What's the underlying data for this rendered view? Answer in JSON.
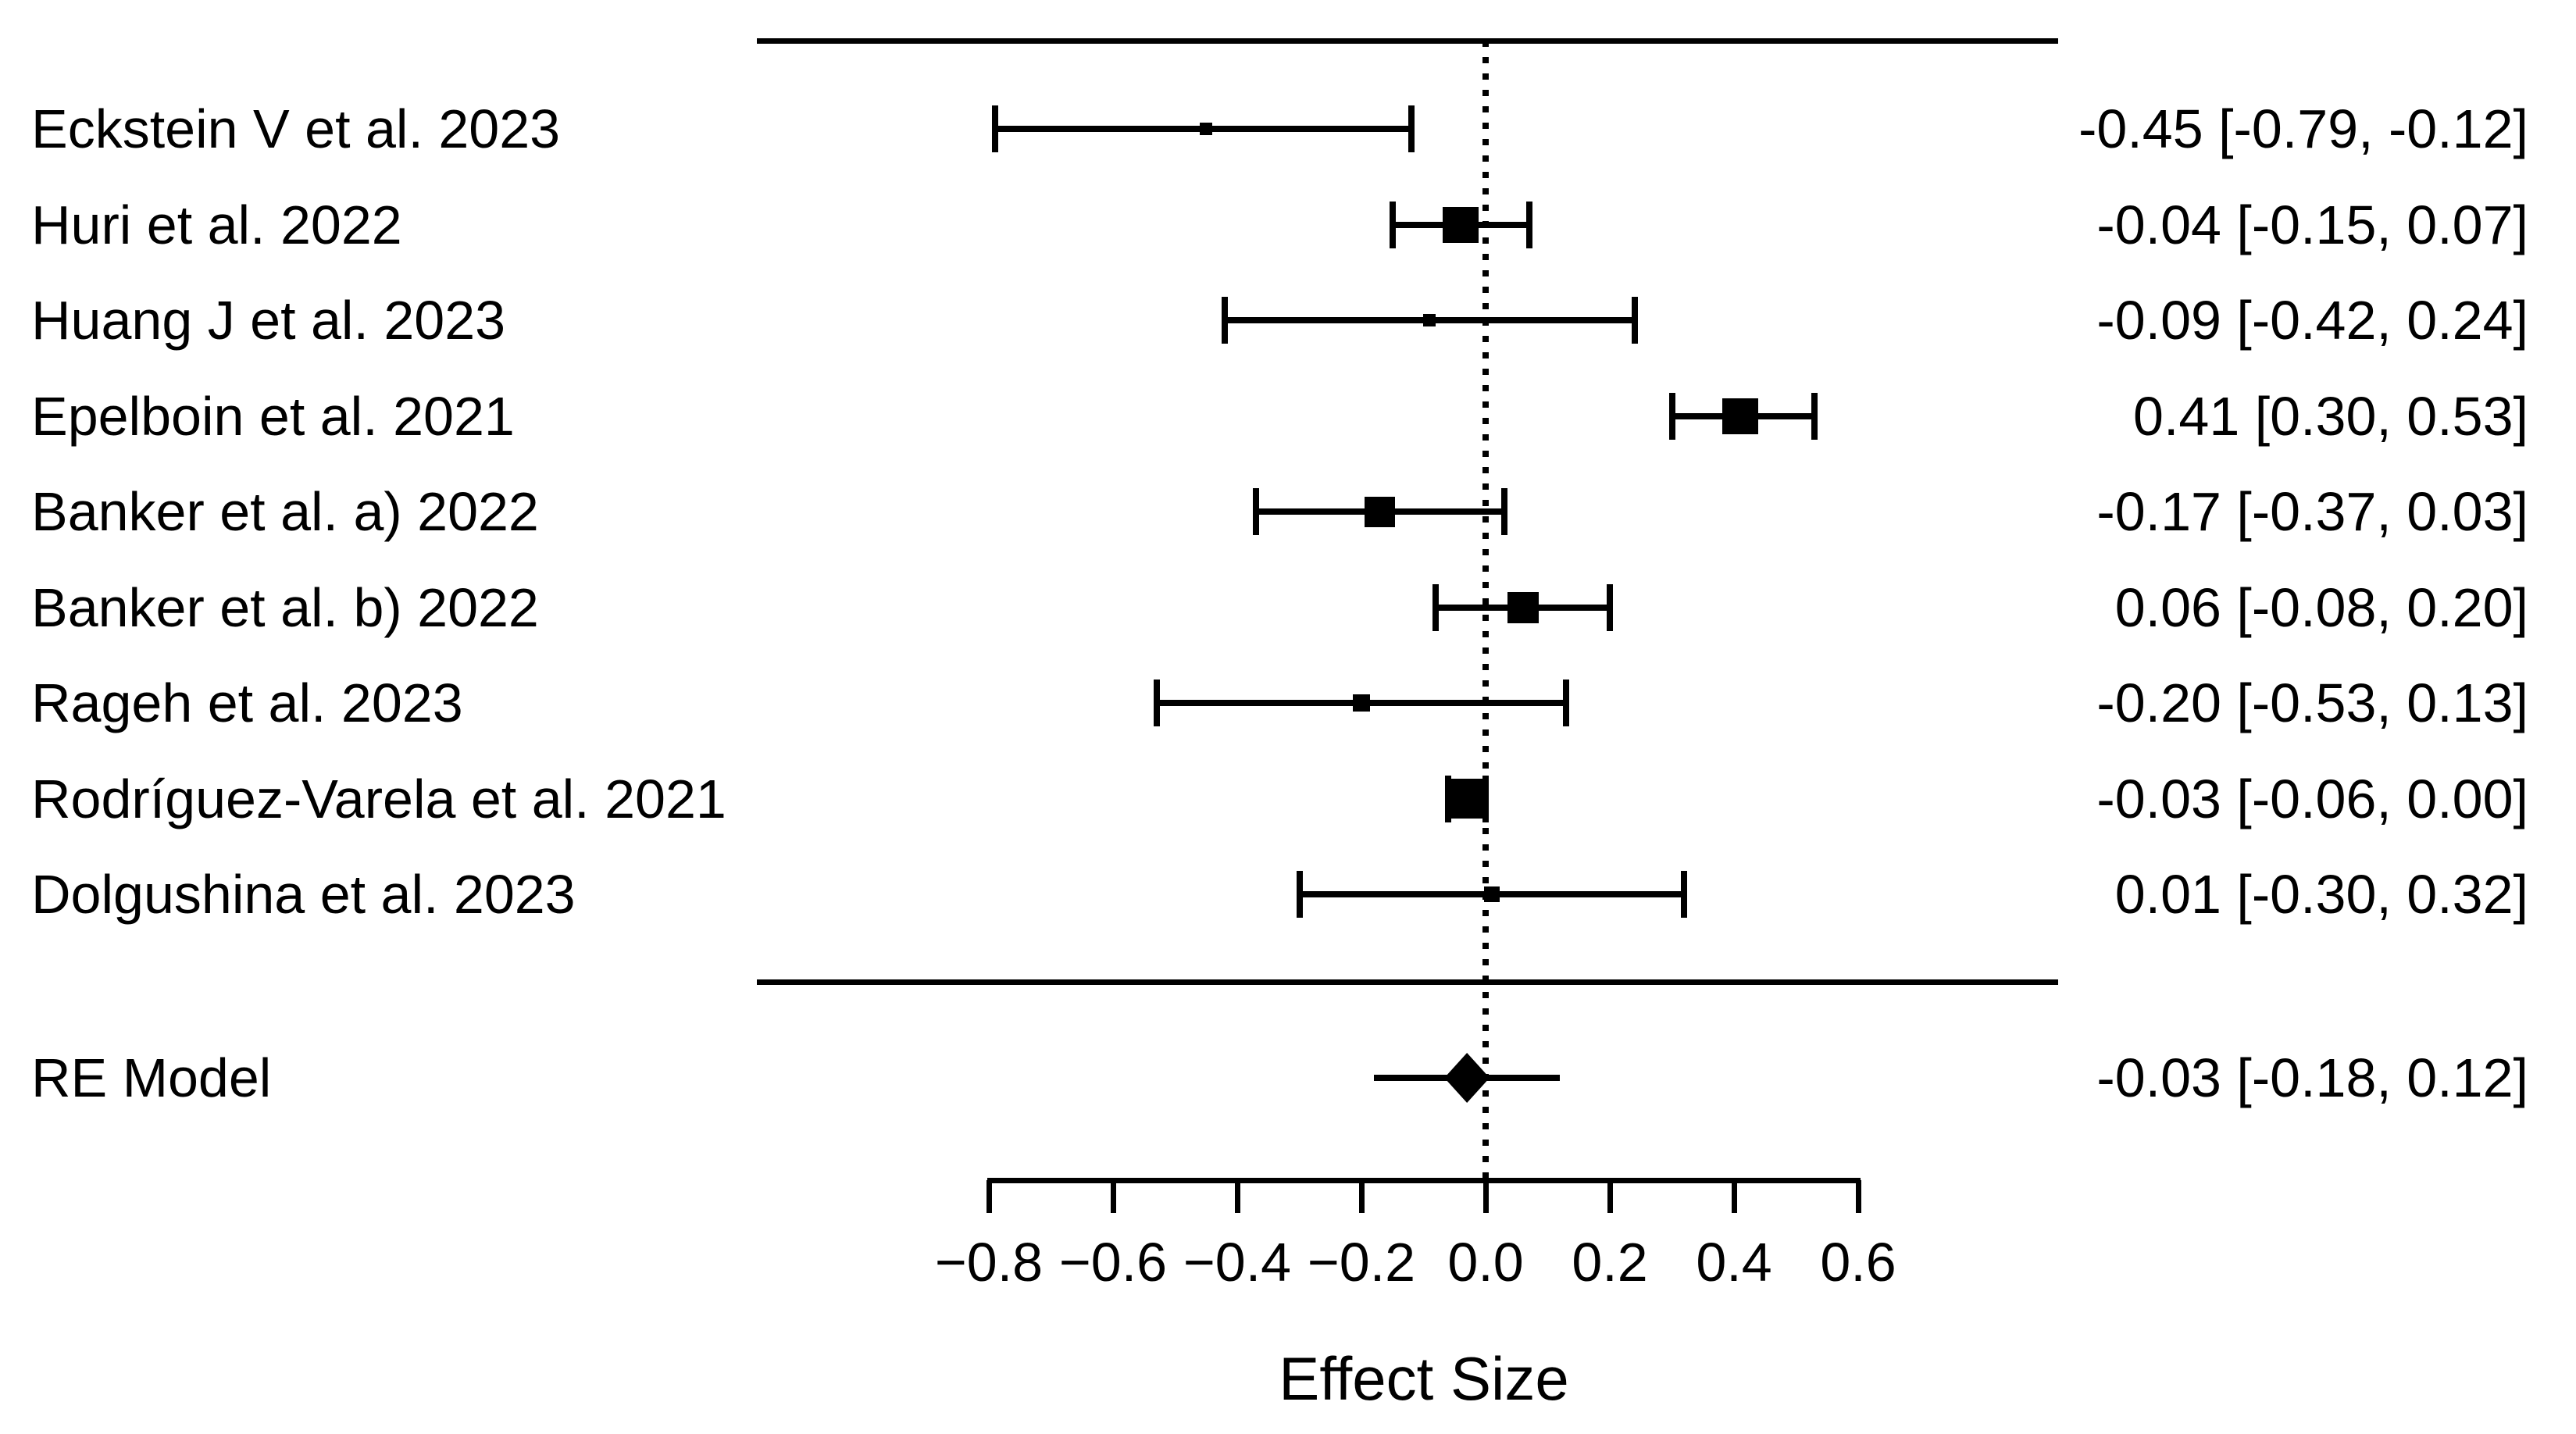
{
  "chart_data": {
    "type": "forest",
    "title": "",
    "xlabel": "Effect Size",
    "axis": {
      "x_range": [
        -0.88,
        0.68
      ],
      "ticks": [
        -0.8,
        -0.6,
        -0.4,
        -0.2,
        0.0,
        0.2,
        0.4,
        0.6
      ],
      "tick_labels": [
        "−0.8",
        "−0.6",
        "−0.4",
        "−0.2",
        "0.0",
        "0.2",
        "0.4",
        "0.6"
      ],
      "zero_reference_line": 0.0,
      "grid": false
    },
    "studies": [
      {
        "label": "Eckstein V et al. 2023",
        "estimate": -0.45,
        "ci_lower": -0.79,
        "ci_upper": -0.12,
        "annotation": "-0.45 [-0.79, -0.12]",
        "marker_px": 16
      },
      {
        "label": "Huri et al. 2022",
        "estimate": -0.04,
        "ci_lower": -0.15,
        "ci_upper": 0.07,
        "annotation": "-0.04 [-0.15, 0.07]",
        "marker_px": 46
      },
      {
        "label": "Huang J et al. 2023",
        "estimate": -0.09,
        "ci_lower": -0.42,
        "ci_upper": 0.24,
        "annotation": "-0.09 [-0.42, 0.24]",
        "marker_px": 16
      },
      {
        "label": "Epelboin et al. 2021",
        "estimate": 0.41,
        "ci_lower": 0.3,
        "ci_upper": 0.53,
        "annotation": "0.41 [0.30, 0.53]",
        "marker_px": 46
      },
      {
        "label": "Banker et al. a) 2022",
        "estimate": -0.17,
        "ci_lower": -0.37,
        "ci_upper": 0.03,
        "annotation": "-0.17 [-0.37, 0.03]",
        "marker_px": 39
      },
      {
        "label": "Banker et al. b) 2022",
        "estimate": 0.06,
        "ci_lower": -0.08,
        "ci_upper": 0.2,
        "annotation": "0.06 [-0.08, 0.20]",
        "marker_px": 40
      },
      {
        "label": "Rageh et al. 2023",
        "estimate": -0.2,
        "ci_lower": -0.53,
        "ci_upper": 0.13,
        "annotation": "-0.20 [-0.53, 0.13]",
        "marker_px": 22
      },
      {
        "label": "Rodríguez-Varela et al. 2021",
        "estimate": -0.03,
        "ci_lower": -0.06,
        "ci_upper": 0.0,
        "annotation": "-0.03 [-0.06, 0.00]",
        "marker_px": 51
      },
      {
        "label": "Dolgushina et al. 2023",
        "estimate": 0.01,
        "ci_lower": -0.3,
        "ci_upper": 0.32,
        "annotation": "0.01 [-0.30, 0.32]",
        "marker_px": 20
      }
    ],
    "summary": {
      "label": "RE Model",
      "estimate": -0.03,
      "ci_lower": -0.18,
      "ci_upper": 0.12,
      "annotation": "-0.03 [-0.18, 0.12]"
    }
  }
}
